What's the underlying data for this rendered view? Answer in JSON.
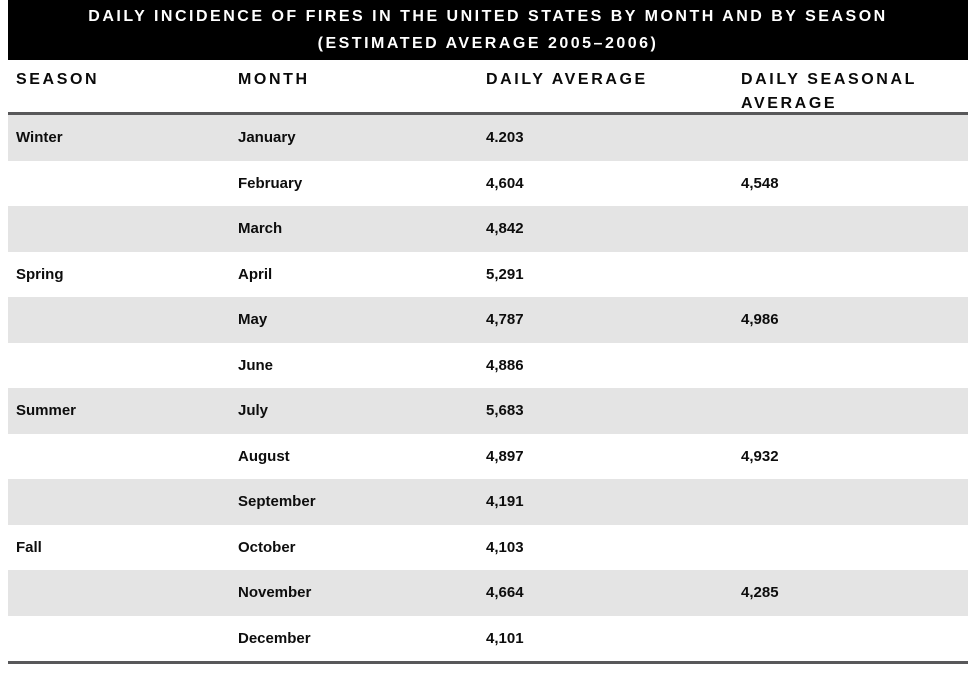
{
  "title": {
    "line1": "DAILY INCIDENCE OF FIRES IN THE UNITED STATES BY MONTH AND BY SEASON",
    "line2": "(ESTIMATED AVERAGE 2005–2006)"
  },
  "columns": [
    "SEASON",
    "MONTH",
    "DAILY AVERAGE",
    "DAILY SEASONAL AVERAGE"
  ],
  "rows": [
    {
      "season": "Winter",
      "month": "January",
      "daily_average": "4.203",
      "seasonal_average": ""
    },
    {
      "season": "",
      "month": "February",
      "daily_average": "4,604",
      "seasonal_average": "4,548"
    },
    {
      "season": "",
      "month": "March",
      "daily_average": "4,842",
      "seasonal_average": ""
    },
    {
      "season": "Spring",
      "month": "April",
      "daily_average": "5,291",
      "seasonal_average": ""
    },
    {
      "season": "",
      "month": "May",
      "daily_average": "4,787",
      "seasonal_average": "4,986"
    },
    {
      "season": "",
      "month": "June",
      "daily_average": "4,886",
      "seasonal_average": ""
    },
    {
      "season": "Summer",
      "month": "July",
      "daily_average": "5,683",
      "seasonal_average": ""
    },
    {
      "season": "",
      "month": "August",
      "daily_average": "4,897",
      "seasonal_average": "4,932"
    },
    {
      "season": "",
      "month": "September",
      "daily_average": "4,191",
      "seasonal_average": ""
    },
    {
      "season": "Fall",
      "month": "October",
      "daily_average": "4,103",
      "seasonal_average": ""
    },
    {
      "season": "",
      "month": "November",
      "daily_average": "4,664",
      "seasonal_average": "4,285"
    },
    {
      "season": "",
      "month": "December",
      "daily_average": "4,101",
      "seasonal_average": ""
    }
  ],
  "chart_data": {
    "type": "table",
    "title": "DAILY INCIDENCE OF FIRES IN THE UNITED STATES BY MONTH AND BY SEASON",
    "subtitle": "(ESTIMATED AVERAGE 2005–2006)",
    "columns": [
      "SEASON",
      "MONTH",
      "DAILY AVERAGE",
      "DAILY SEASONAL AVERAGE"
    ],
    "rows": [
      [
        "Winter",
        "January",
        "4.203",
        ""
      ],
      [
        "",
        "February",
        "4,604",
        "4,548"
      ],
      [
        "",
        "March",
        "4,842",
        ""
      ],
      [
        "Spring",
        "April",
        "5,291",
        ""
      ],
      [
        "",
        "May",
        "4,787",
        "4,986"
      ],
      [
        "",
        "June",
        "4,886",
        ""
      ],
      [
        "Summer",
        "July",
        "5,683",
        ""
      ],
      [
        "",
        "August",
        "4,897",
        "4,932"
      ],
      [
        "",
        "September",
        "4,191",
        ""
      ],
      [
        "Fall",
        "October",
        "4,103",
        ""
      ],
      [
        "",
        "November",
        "4,664",
        "4,285"
      ],
      [
        "",
        "December",
        "4,101",
        ""
      ]
    ],
    "daily_averages_by_month": {
      "January": 4203,
      "February": 4604,
      "March": 4842,
      "April": 5291,
      "May": 4787,
      "June": 4886,
      "July": 5683,
      "August": 4897,
      "September": 4191,
      "October": 4103,
      "November": 4664,
      "December": 4101
    },
    "seasonal_averages": {
      "Winter": 4548,
      "Spring": 4986,
      "Summer": 4932,
      "Fall": 4285
    },
    "layout_hints": {
      "striped_rows": "odd rows shaded",
      "season_label_rows": [
        "January",
        "April",
        "July",
        "October"
      ],
      "seasonal_value_rows": [
        "February",
        "May",
        "August",
        "November"
      ]
    }
  },
  "colors": {
    "band_bg": "#000000",
    "band_text": "#ffffff",
    "stripe": "#e4e4e4",
    "rule": "#58585a",
    "text": "#111111"
  }
}
